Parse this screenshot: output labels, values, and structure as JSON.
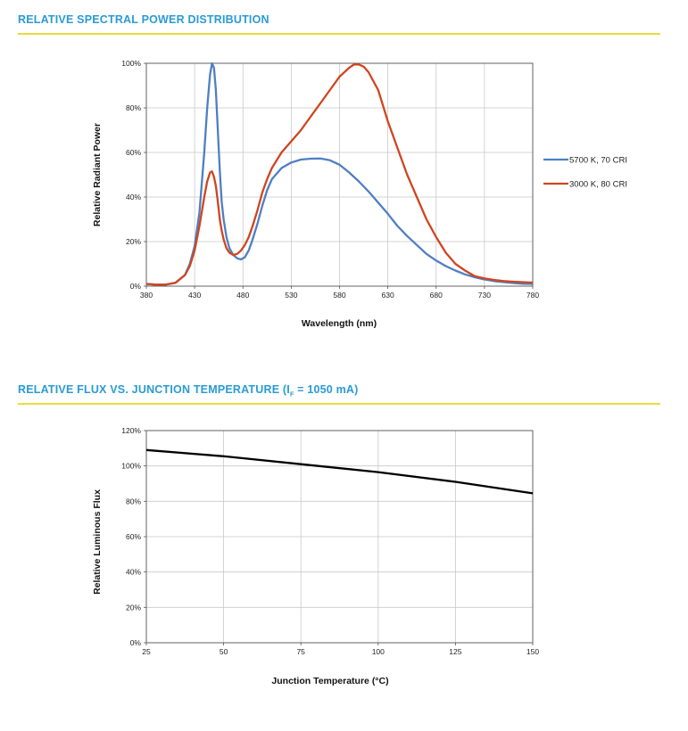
{
  "chart1": {
    "section_title": "RELATIVE SPECTRAL POWER DISTRIBUTION",
    "chart_data": {
      "type": "line",
      "title": "RELATIVE SPECTRAL POWER DISTRIBUTION",
      "xlabel": "Wavelength (nm)",
      "ylabel": "Relative Radiant Power",
      "xlim": [
        380,
        780
      ],
      "ylim": [
        0,
        100
      ],
      "x_ticks": [
        380,
        430,
        480,
        530,
        580,
        630,
        680,
        730,
        780
      ],
      "y_ticks": [
        0,
        20,
        40,
        60,
        80,
        100
      ],
      "y_tick_labels": [
        "0%",
        "20%",
        "40%",
        "60%",
        "80%",
        "100%"
      ],
      "grid": true,
      "legend_position": "right",
      "series": [
        {
          "name": "5700 K, 70 CRI",
          "color": "#4f7fc2",
          "x": [
            380,
            390,
            400,
            410,
            420,
            425,
            430,
            435,
            440,
            443,
            446,
            448,
            450,
            452,
            454,
            456,
            458,
            460,
            463,
            466,
            470,
            474,
            478,
            482,
            486,
            490,
            495,
            500,
            505,
            510,
            520,
            530,
            540,
            550,
            560,
            570,
            580,
            590,
            600,
            610,
            620,
            630,
            640,
            650,
            660,
            670,
            680,
            690,
            700,
            710,
            720,
            730,
            740,
            750,
            760,
            770,
            780
          ],
          "y": [
            1,
            0.7,
            0.7,
            1.5,
            5,
            10,
            18,
            33,
            60,
            80,
            95,
            100,
            98,
            88,
            70,
            52,
            38,
            30,
            22,
            17,
            14,
            12.5,
            12,
            13,
            16,
            21,
            28,
            36,
            43,
            48,
            53,
            55.5,
            56.8,
            57.2,
            57.3,
            56.5,
            54.5,
            51,
            47,
            42.5,
            37.5,
            32.5,
            27,
            22.5,
            18.5,
            14.5,
            11.5,
            9,
            7,
            5.3,
            4,
            3,
            2.3,
            1.8,
            1.4,
            1.1,
            1
          ]
        },
        {
          "name": "3000 K, 80 CRI",
          "color": "#cf4520",
          "x": [
            380,
            390,
            400,
            410,
            420,
            425,
            430,
            435,
            440,
            443,
            446,
            448,
            450,
            452,
            454,
            456,
            458,
            460,
            463,
            466,
            470,
            474,
            478,
            482,
            486,
            490,
            495,
            500,
            505,
            510,
            520,
            530,
            540,
            550,
            560,
            570,
            580,
            590,
            595,
            600,
            605,
            610,
            620,
            630,
            640,
            650,
            660,
            670,
            680,
            690,
            700,
            710,
            720,
            730,
            740,
            750,
            760,
            770,
            780
          ],
          "y": [
            1,
            0.7,
            0.7,
            1.5,
            5,
            9,
            16,
            27,
            40,
            47,
            51,
            51.5,
            49,
            45,
            38,
            30,
            25,
            21,
            17,
            15,
            14,
            14.5,
            16,
            18.5,
            22,
            27,
            34,
            42,
            48,
            53,
            60,
            65,
            70,
            76,
            82,
            88,
            94,
            98,
            99.5,
            99.5,
            98.5,
            96,
            88,
            74,
            62,
            50,
            40,
            30,
            22,
            15,
            10,
            7,
            4.5,
            3.5,
            2.8,
            2.3,
            2.0,
            1.8,
            1.6
          ]
        }
      ]
    }
  },
  "chart2": {
    "section_title_main": "RELATIVE FLUX VS. JUNCTION TEMPERATURE (I",
    "section_title_sub": "F",
    "section_title_tail": " = 1050 mA)",
    "chart_data": {
      "type": "line",
      "title": "RELATIVE FLUX VS. JUNCTION TEMPERATURE (IF = 1050 mA)",
      "xlabel": "Junction Temperature (°C)",
      "ylabel": "Relative Luminous Flux",
      "xlim": [
        25,
        150
      ],
      "ylim": [
        0,
        120
      ],
      "x_ticks": [
        25,
        50,
        75,
        100,
        125,
        150
      ],
      "y_ticks": [
        0,
        20,
        40,
        60,
        80,
        100,
        120
      ],
      "y_tick_labels": [
        "0%",
        "20%",
        "40%",
        "60%",
        "80%",
        "100%",
        "120%"
      ],
      "grid": true,
      "series": [
        {
          "color": "#000000",
          "x": [
            25,
            50,
            75,
            100,
            125,
            150
          ],
          "y": [
            109,
            105.5,
            101,
            96.5,
            91,
            84.5
          ]
        }
      ]
    }
  }
}
